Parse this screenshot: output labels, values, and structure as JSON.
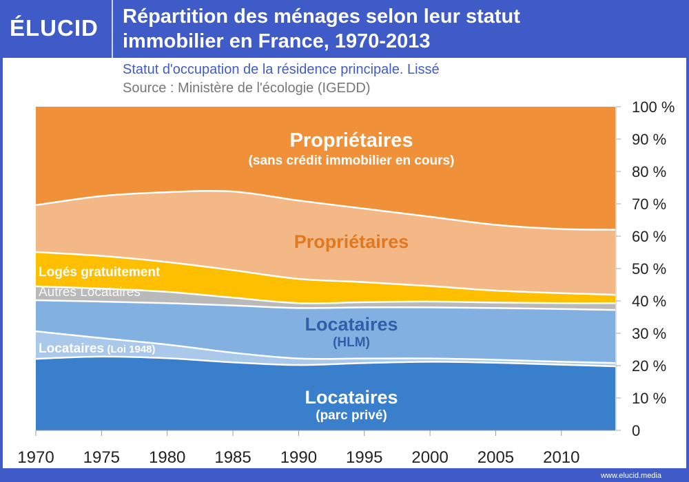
{
  "header": {
    "logo": "ÉLUCID",
    "title_line1": "Répartition des ménages selon leur statut",
    "title_line2": "immobilier en France, 1970-2013"
  },
  "subtitle": "Statut d'occupation de la résidence principale. Lissé",
  "source": "Source : Ministère de l'écologie (IGEDD)",
  "footer": "www.elucid.media",
  "chart_data": {
    "type": "area",
    "stacked": true,
    "smoothed": true,
    "x": [
      1970,
      1975,
      1980,
      1985,
      1990,
      1995,
      2000,
      2005,
      2010,
      2013
    ],
    "xlim": [
      1970,
      2014.1
    ],
    "ylim": [
      0,
      100
    ],
    "x_ticks": [
      "1970",
      "1975",
      "1980",
      "1985",
      "1990",
      "1995",
      "2000",
      "2005",
      "2010"
    ],
    "y_ticks": [
      "0",
      "10 %",
      "20 %",
      "30 %",
      "40 %",
      "50 %",
      "60 %",
      "70 %",
      "80 %",
      "90 %",
      "100 %"
    ],
    "y_axis_side": "right",
    "series": [
      {
        "name": "Locataires (parc privé)",
        "label": "Locataires",
        "sublabel": "(parc privé)",
        "color": "#3a7fcc",
        "values": [
          22.1,
          22.8,
          22.3,
          21.0,
          20.2,
          20.8,
          21.2,
          20.9,
          20.3,
          19.8
        ]
      },
      {
        "name": "Locataires (Loi 1948)",
        "label": "Locataires",
        "sublabel": "(Loi 1948)",
        "color": "#a9c8ea",
        "values": [
          8.5,
          5.7,
          4.2,
          3.0,
          2.0,
          1.4,
          1.0,
          0.9,
          0.9,
          1.0
        ]
      },
      {
        "name": "Locataires (HLM)",
        "label": "Locataires",
        "sublabel": "(HLM)",
        "color": "#82b0e0",
        "values": [
          9.6,
          11.3,
          12.8,
          14.6,
          15.6,
          15.8,
          15.8,
          16.0,
          16.3,
          16.4
        ]
      },
      {
        "name": "Autres Locataires",
        "label": "Autres Locataires",
        "color": "#b9b9b9",
        "values": [
          4.3,
          4.0,
          3.5,
          2.4,
          1.5,
          1.6,
          1.8,
          1.7,
          1.8,
          2.1
        ]
      },
      {
        "name": "Logés gratuitement",
        "label": "Logés gratuitement",
        "color": "#fdbf00",
        "values": [
          10.6,
          10.1,
          9.2,
          8.5,
          7.5,
          6.2,
          4.8,
          3.7,
          3.1,
          2.6
        ]
      },
      {
        "name": "Propriétaires",
        "label": "Propriétaires",
        "color": "#f4b887",
        "values": [
          14.5,
          18.5,
          21.6,
          24.3,
          24.2,
          22.7,
          21.4,
          20.3,
          19.8,
          20.1
        ]
      },
      {
        "name": "Propriétaires (sans crédit immobilier en cours)",
        "label": "Propriétaires",
        "sublabel": "(sans crédit immobilier en cours)",
        "color": "#f0913a",
        "values": [
          30.4,
          27.6,
          26.4,
          26.2,
          29.0,
          31.5,
          34.0,
          36.5,
          37.8,
          38.0
        ]
      }
    ]
  }
}
